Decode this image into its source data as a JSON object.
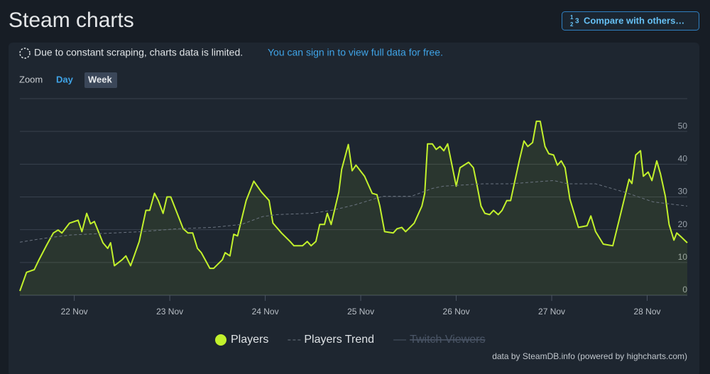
{
  "header": {
    "title": "Steam charts",
    "button": "Compare with others…"
  },
  "notice": {
    "text": "Due to constant scraping, charts data is limited.",
    "link": "You can sign in to view full data for free."
  },
  "zoom": {
    "label": "Zoom",
    "options": [
      "Day",
      "Week"
    ],
    "selected": 1
  },
  "credit": "data by SteamDB.info (powered by highcharts.com)",
  "chart_data": {
    "type": "line",
    "xlim": [
      21.43,
      28.42
    ],
    "xticks": [
      {
        "value": 22,
        "label": "22 Nov"
      },
      {
        "value": 23,
        "label": "23 Nov"
      },
      {
        "value": 24,
        "label": "24 Nov"
      },
      {
        "value": 25,
        "label": "25 Nov"
      },
      {
        "value": 26,
        "label": "26 Nov"
      },
      {
        "value": 27,
        "label": "27 Nov"
      },
      {
        "value": 28,
        "label": "28 Nov"
      }
    ],
    "ylim": [
      0,
      60
    ],
    "yticks": [
      0,
      10,
      20,
      30,
      40,
      50
    ],
    "grid": true,
    "series": [
      {
        "name": "Players",
        "color": "#c2f12c",
        "fill": true,
        "visible": true,
        "x": [
          21.43,
          21.5,
          21.58,
          21.63,
          21.71,
          21.78,
          21.83,
          21.87,
          21.95,
          22.04,
          22.08,
          22.13,
          22.17,
          22.21,
          22.3,
          22.35,
          22.38,
          22.42,
          22.5,
          22.54,
          22.59,
          22.68,
          22.75,
          22.79,
          22.84,
          22.88,
          22.93,
          22.97,
          23.01,
          23.1,
          23.14,
          23.19,
          23.24,
          23.29,
          23.33,
          23.42,
          23.46,
          23.55,
          23.58,
          23.63,
          23.67,
          23.71,
          23.8,
          23.88,
          23.96,
          24.04,
          24.08,
          24.17,
          24.26,
          24.3,
          24.39,
          24.44,
          24.48,
          24.53,
          24.57,
          24.62,
          24.65,
          24.69,
          24.77,
          24.8,
          24.87,
          24.91,
          24.95,
          25.04,
          25.12,
          25.17,
          25.2,
          25.25,
          25.34,
          25.38,
          25.43,
          25.47,
          25.56,
          25.64,
          25.67,
          25.7,
          25.75,
          25.79,
          25.83,
          25.87,
          25.91,
          26.0,
          26.04,
          26.13,
          26.18,
          26.22,
          26.26,
          26.3,
          26.35,
          26.39,
          26.44,
          26.48,
          26.53,
          26.57,
          26.66,
          26.71,
          26.75,
          26.8,
          26.84,
          26.88,
          26.93,
          26.97,
          27.02,
          27.06,
          27.1,
          27.14,
          27.19,
          27.28,
          27.37,
          27.41,
          27.46,
          27.54,
          27.64,
          27.72,
          27.81,
          27.84,
          27.88,
          27.93,
          27.96,
          28.01,
          28.05,
          28.1,
          28.14,
          28.19,
          28.23,
          28.28,
          28.31,
          28.36,
          28.42
        ],
        "values": [
          1.3,
          7,
          7.8,
          10.8,
          15.3,
          19,
          19.9,
          19,
          22,
          22.9,
          19.4,
          25,
          21.8,
          22.5,
          16,
          14.3,
          16,
          9,
          10.8,
          12,
          9,
          16.4,
          25.9,
          25.9,
          31.1,
          28.9,
          25,
          30,
          30,
          23.3,
          20.3,
          19,
          19,
          14.3,
          13,
          8.2,
          8.2,
          10.8,
          13,
          12,
          18.6,
          18.1,
          28.9,
          34.8,
          31.5,
          28.9,
          22,
          19,
          16.4,
          15.1,
          15.1,
          16.4,
          15.1,
          16.4,
          21.6,
          21.6,
          25,
          21.6,
          31.5,
          38.4,
          46,
          38,
          39.7,
          36.3,
          31.1,
          30.7,
          27.2,
          19.4,
          19,
          20.3,
          20.7,
          19.4,
          22,
          27.2,
          31.1,
          46.2,
          46.2,
          44.5,
          45.4,
          44.1,
          46.2,
          33.3,
          38.9,
          40.6,
          38.9,
          33.3,
          27.2,
          25,
          24.6,
          25.9,
          24.6,
          25.9,
          28.9,
          28.9,
          41,
          47.1,
          45.4,
          46.6,
          53.1,
          53.1,
          45.4,
          43.2,
          42.8,
          39.7,
          41,
          38.9,
          29.4,
          20.7,
          21.2,
          24.2,
          19.4,
          15.6,
          15.1,
          24.6,
          35.4,
          34.1,
          42.8,
          44.1,
          36.3,
          37.6,
          35,
          41,
          37,
          30.2,
          21.6,
          16.8,
          19,
          17.7,
          16
        ]
      },
      {
        "name": "Players Trend",
        "color": "#6b7480",
        "dashed": true,
        "visible": true,
        "x": [
          21.43,
          21.67,
          21.96,
          22.71,
          23.08,
          23.45,
          23.75,
          23.97,
          24.12,
          24.49,
          24.71,
          24.94,
          25.23,
          25.53,
          25.75,
          25.87,
          26.28,
          26.57,
          27.02,
          27.17,
          27.46,
          27.76,
          28.06,
          28.42
        ],
        "values": [
          16.2,
          17.3,
          18.4,
          19.4,
          20.3,
          20.7,
          21.6,
          24,
          24.6,
          25,
          26,
          27.6,
          30.2,
          30.2,
          32.6,
          33.3,
          34,
          34,
          35,
          34,
          34,
          31.5,
          28.5,
          27.2
        ]
      },
      {
        "name": "Twitch Viewers",
        "color": "#4a5566",
        "visible": false
      }
    ]
  }
}
